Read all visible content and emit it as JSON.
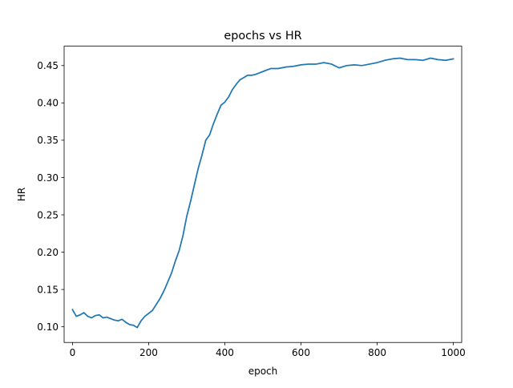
{
  "chart_data": {
    "type": "line",
    "title": "epochs vs HR",
    "xlabel": "epoch",
    "ylabel": "HR",
    "xlim": [
      -22,
      1022
    ],
    "ylim": [
      0.079,
      0.476
    ],
    "xticks": [
      0,
      200,
      400,
      600,
      800,
      1000
    ],
    "yticks": [
      0.1,
      0.15,
      0.2,
      0.25,
      0.3,
      0.35,
      0.4,
      0.45
    ],
    "xtick_labels": [
      "0",
      "200",
      "400",
      "600",
      "800",
      "1000"
    ],
    "ytick_labels": [
      "0.10",
      "0.15",
      "0.20",
      "0.25",
      "0.30",
      "0.35",
      "0.40",
      "0.45"
    ],
    "grid": false,
    "legend": "none",
    "line_color": "#1f77b4",
    "series": [
      {
        "x": [
          0,
          10,
          20,
          30,
          40,
          50,
          60,
          70,
          80,
          90,
          100,
          110,
          120,
          130,
          140,
          150,
          160,
          170,
          180,
          190,
          200,
          210,
          220,
          230,
          240,
          250,
          260,
          270,
          280,
          290,
          300,
          310,
          320,
          330,
          340,
          350,
          360,
          370,
          380,
          390,
          400,
          410,
          420,
          430,
          440,
          450,
          460,
          470,
          480,
          490,
          500,
          520,
          540,
          560,
          580,
          600,
          620,
          640,
          660,
          680,
          700,
          720,
          740,
          760,
          780,
          800,
          820,
          840,
          860,
          880,
          900,
          920,
          940,
          960,
          980,
          1000
        ],
        "values": [
          0.123,
          0.114,
          0.116,
          0.119,
          0.114,
          0.112,
          0.115,
          0.116,
          0.112,
          0.113,
          0.111,
          0.109,
          0.108,
          0.11,
          0.106,
          0.103,
          0.102,
          0.099,
          0.108,
          0.114,
          0.118,
          0.122,
          0.13,
          0.138,
          0.148,
          0.16,
          0.172,
          0.188,
          0.202,
          0.222,
          0.248,
          0.268,
          0.29,
          0.312,
          0.33,
          0.35,
          0.357,
          0.372,
          0.385,
          0.397,
          0.401,
          0.408,
          0.418,
          0.425,
          0.431,
          0.434,
          0.437,
          0.437,
          0.438,
          0.44,
          0.442,
          0.446,
          0.446,
          0.448,
          0.449,
          0.451,
          0.452,
          0.452,
          0.454,
          0.452,
          0.447,
          0.45,
          0.451,
          0.45,
          0.452,
          0.454,
          0.457,
          0.459,
          0.46,
          0.458,
          0.458,
          0.457,
          0.46,
          0.458,
          0.457,
          0.459
        ]
      }
    ]
  }
}
